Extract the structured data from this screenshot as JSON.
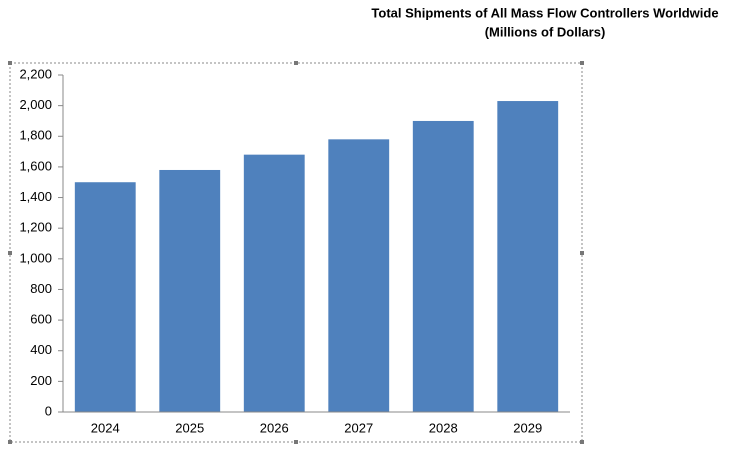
{
  "chart_data": {
    "type": "bar",
    "title": "Total Shipments of All Mass Flow Controllers Worldwide",
    "subtitle": "(Millions of Dollars)",
    "categories": [
      "2024",
      "2025",
      "2026",
      "2027",
      "2028",
      "2029"
    ],
    "values": [
      1500,
      1580,
      1680,
      1780,
      1900,
      2030
    ],
    "color": "#4f81bd",
    "ylim": [
      0,
      2200
    ],
    "yticks": [
      0,
      200,
      400,
      600,
      800,
      {
        "value": 1000,
        "label": "1,000"
      },
      {
        "value": 1200,
        "label": "1,200"
      },
      {
        "value": 1400,
        "label": "1,400"
      },
      {
        "value": 1600,
        "label": "1,600"
      },
      {
        "value": 1800,
        "label": "1,800"
      },
      {
        "value": 2000,
        "label": "2,000"
      },
      {
        "value": 2200,
        "label": "2,200"
      }
    ],
    "grid": false
  }
}
